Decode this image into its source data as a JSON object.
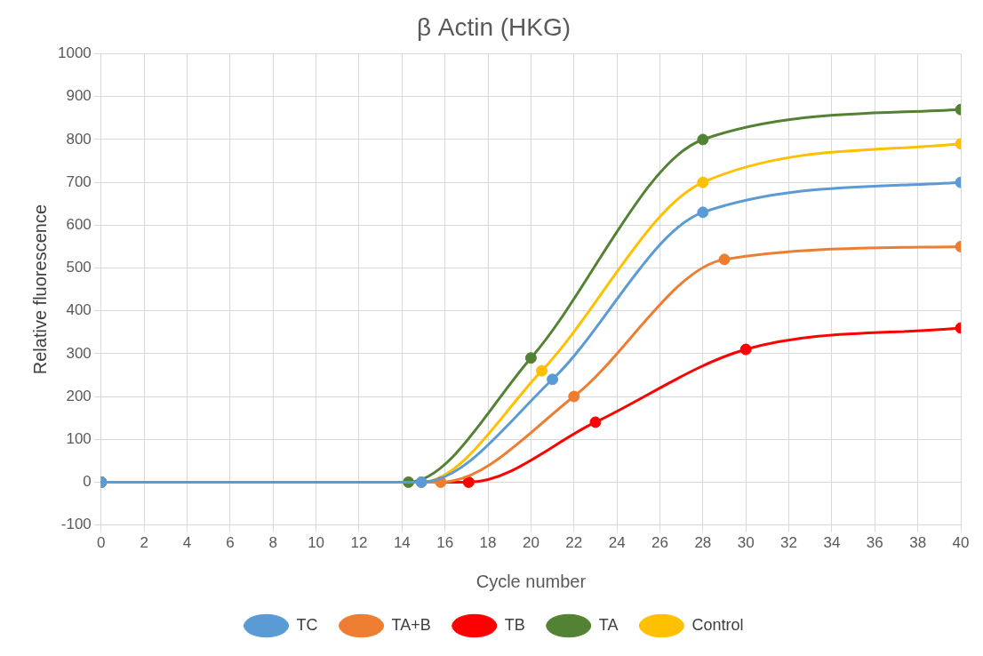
{
  "chart_data": {
    "type": "line",
    "title": "β Actin (HKG)",
    "xlabel": "Cycle number",
    "ylabel": "Relative fluorescence",
    "xlim": [
      0,
      40
    ],
    "xticks": [
      0,
      2,
      4,
      6,
      8,
      10,
      12,
      14,
      16,
      18,
      20,
      22,
      24,
      26,
      28,
      30,
      32,
      34,
      36,
      38,
      40
    ],
    "ylim": [
      -100,
      1000
    ],
    "yticks": [
      -100,
      0,
      100,
      200,
      300,
      400,
      500,
      600,
      700,
      800,
      900,
      1000
    ],
    "grid": true,
    "legend": "bottom",
    "marker": "circle",
    "line_style": "solid",
    "series": [
      {
        "name": "TC",
        "color": "#5b9bd5",
        "x": [
          0,
          14.9,
          21,
          28,
          40
        ],
        "values": [
          0,
          0,
          240,
          630,
          700
        ]
      },
      {
        "name": "TA+B",
        "color": "#ed7d31",
        "x": [
          0,
          15.8,
          22,
          29,
          40
        ],
        "values": [
          0,
          0,
          200,
          520,
          550
        ]
      },
      {
        "name": "TB",
        "color": "#ff0000",
        "x": [
          0,
          17.1,
          23,
          30,
          40
        ],
        "values": [
          0,
          0,
          140,
          310,
          360
        ]
      },
      {
        "name": "TA",
        "color": "#548235",
        "x": [
          0,
          14.3,
          20,
          28,
          40
        ],
        "values": [
          0,
          0,
          290,
          800,
          870
        ]
      },
      {
        "name": "Control",
        "color": "#ffc000",
        "x": [
          0,
          14.9,
          20.5,
          28,
          40
        ],
        "values": [
          0,
          0,
          260,
          700,
          790
        ]
      }
    ]
  }
}
